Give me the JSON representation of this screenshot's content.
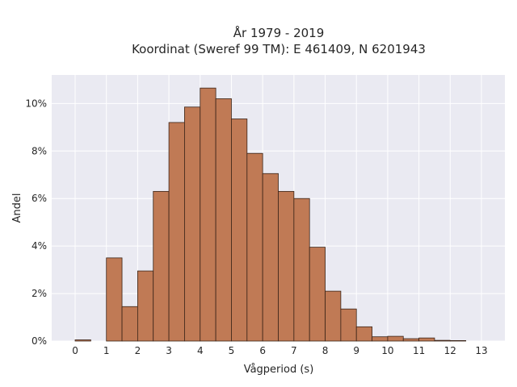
{
  "chart_data": {
    "type": "bar",
    "title_line1": "År 1979 - 2019",
    "title_line2": "Koordinat (Sweref 99 TM): E 461409, N 6201943",
    "xlabel": "Vågperiod (s)",
    "ylabel": "Andel",
    "bin_width": 0.5,
    "bin_starts": [
      0,
      0.5,
      1,
      1.5,
      2,
      2.5,
      3,
      3.5,
      4,
      4.5,
      5,
      5.5,
      6,
      6.5,
      7,
      7.5,
      8,
      8.5,
      9,
      9.5,
      10,
      10.5,
      11,
      11.5,
      12,
      12.5
    ],
    "values": [
      0.05,
      0.0,
      3.5,
      1.45,
      2.95,
      6.3,
      9.2,
      9.85,
      10.65,
      10.2,
      9.35,
      7.9,
      7.05,
      6.3,
      6.0,
      3.95,
      2.1,
      1.35,
      0.6,
      0.18,
      0.2,
      0.1,
      0.13,
      0.03,
      0.02,
      0.0
    ],
    "xlim": [
      -0.75,
      13.75
    ],
    "ylim": [
      0,
      11.2
    ],
    "x_ticks": [
      0,
      1,
      2,
      3,
      4,
      5,
      6,
      7,
      8,
      9,
      10,
      11,
      12,
      13
    ],
    "x_tick_labels": [
      "0",
      "1",
      "2",
      "3",
      "4",
      "5",
      "6",
      "7",
      "8",
      "9",
      "10",
      "11",
      "12",
      "13"
    ],
    "y_ticks": [
      0,
      2,
      4,
      6,
      8,
      10
    ],
    "y_tick_labels": [
      "0%",
      "2%",
      "4%",
      "6%",
      "8%",
      "10%"
    ],
    "grid": true,
    "colors": {
      "background": "#eaeaf2",
      "bar_fill": "#c07a55",
      "bar_edge": "#3a2418",
      "grid": "#ffffff"
    }
  }
}
